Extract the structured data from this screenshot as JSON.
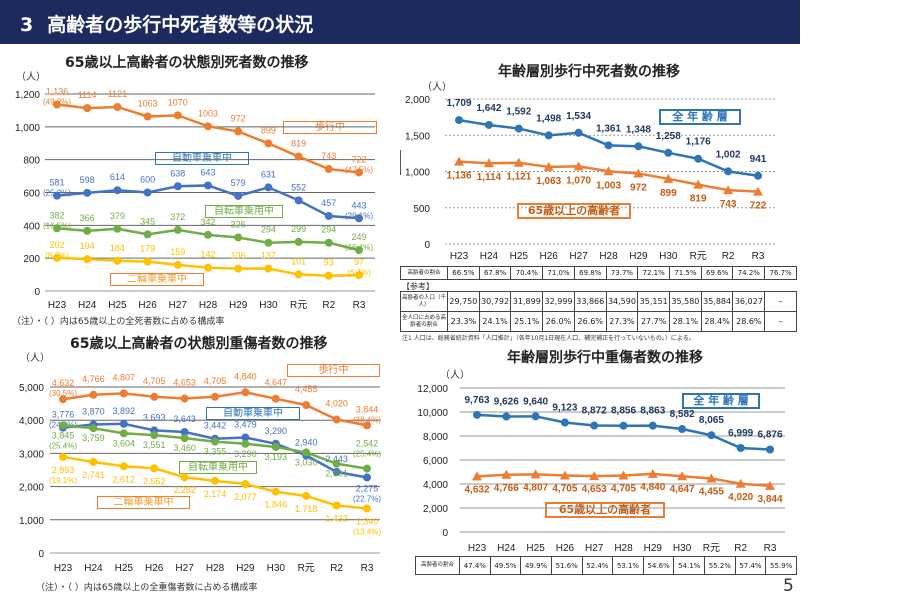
{
  "header": {
    "number": "3",
    "title": "高齢者の歩行中死者数等の状況"
  },
  "page_number": "5",
  "chart_data": [
    {
      "type": "line",
      "title": "65歳以上高齢者の状態別死者数の推移",
      "ylabel": "（人）",
      "ylim": [
        0,
        1200
      ],
      "ytick_step": 200,
      "grid": true,
      "categories": [
        "H23",
        "H24",
        "H25",
        "H26",
        "H27",
        "H28",
        "H29",
        "H30",
        "R元",
        "R2",
        "R3"
      ],
      "note": "（注）・（ ）内は65歳以上の全死者数に占める構成率",
      "series": [
        {
          "name": "歩行中",
          "color": "#ED7D31",
          "values": [
            1136,
            1114,
            1121,
            1063,
            1070,
            1003,
            972,
            899,
            819,
            743,
            722
          ],
          "labels": [
            "1,136",
            "1114",
            "1121",
            "1063",
            "1070",
            "1003",
            "972",
            "899",
            "819",
            "743",
            "722"
          ],
          "notes": [
            "(49.2%)",
            "",
            "",
            "",
            "",
            "",
            "",
            "",
            "",
            "",
            "(47.5%)"
          ]
        },
        {
          "name": "自動車乗車中",
          "color": "#4472C4",
          "values": [
            581,
            598,
            614,
            600,
            638,
            643,
            579,
            631,
            552,
            457,
            443
          ],
          "labels": [
            "581",
            "598",
            "614",
            "600",
            "638",
            "643",
            "579",
            "631",
            "552",
            "457",
            "443"
          ],
          "notes": [
            "(25.2%)",
            "",
            "",
            "",
            "",
            "",
            "",
            "",
            "",
            "",
            "(29.1%)"
          ]
        },
        {
          "name": "自転車乗用中",
          "color": "#70AD47",
          "values": [
            382,
            366,
            379,
            345,
            372,
            342,
            326,
            294,
            299,
            294,
            249
          ],
          "labels": [
            "382",
            "366",
            "379",
            "345",
            "372",
            "342",
            "326",
            "294",
            "299",
            "294",
            "249"
          ],
          "notes": [
            "(16.5%)",
            "",
            "",
            "",
            "",
            "",
            "",
            "",
            "",
            "",
            "(16.4%)"
          ]
        },
        {
          "name": "二輪車乗車中",
          "color": "#FFC000",
          "values": [
            202,
            194,
            184,
            179,
            159,
            142,
            136,
            137,
            101,
            93,
            97
          ],
          "labels": [
            "202",
            "194",
            "184",
            "179",
            "159",
            "142",
            "136",
            "137",
            "101",
            "93",
            "97"
          ],
          "notes": [
            "(8.7%)",
            "",
            "",
            "",
            "",
            "",
            "",
            "",
            "",
            "",
            "(6.4%)"
          ]
        }
      ]
    },
    {
      "type": "line",
      "title": "65歳以上高齢者の状態別重傷者数の推移",
      "ylabel": "（人）",
      "ylim": [
        0,
        5000
      ],
      "ytick_step": 1000,
      "grid": true,
      "categories": [
        "H23",
        "H24",
        "H25",
        "H26",
        "H27",
        "H28",
        "H29",
        "H30",
        "R元",
        "R2",
        "R3"
      ],
      "note": "（注）・（ ）内は65歳以上の全重傷者数に占める構成率",
      "series": [
        {
          "name": "歩行中",
          "color": "#ED7D31",
          "values": [
            4632,
            4766,
            4807,
            4705,
            4653,
            4705,
            4840,
            4647,
            4455,
            4020,
            3844
          ],
          "labels": [
            "4,632",
            "4,766",
            "4,807",
            "4,705",
            "4,653",
            "4,705",
            "4,840",
            "4,647",
            "4,455",
            "4,020",
            "3,844"
          ],
          "notes": [
            "(30.5%)",
            "",
            "",
            "",
            "",
            "",
            "",
            "",
            "",
            "",
            "(38.4%)"
          ]
        },
        {
          "name": "自動車乗車中",
          "color": "#4472C4",
          "values": [
            3776,
            3870,
            3892,
            3693,
            3643,
            3442,
            3479,
            3290,
            2940,
            2443,
            2275
          ],
          "labels": [
            "3,776",
            "3,870",
            "3,892",
            "3,693",
            "3,643",
            "3,442",
            "3,479",
            "3,290",
            "2,940",
            "2,443",
            "2,275"
          ],
          "notes": [
            "(24.9%)",
            "",
            "",
            "",
            "",
            "",
            "",
            "",
            "",
            "",
            "(22.7%)"
          ]
        },
        {
          "name": "自転車乗用中",
          "color": "#70AD47",
          "values": [
            3845,
            3759,
            3604,
            3551,
            3460,
            3355,
            3290,
            3193,
            3030,
            2691,
            2542
          ],
          "labels": [
            "3,845",
            "3,759",
            "3,604",
            "3,551",
            "3,460",
            "3,355",
            "3,290",
            "3,193",
            "3,030",
            "2,691",
            "2,542"
          ],
          "notes": [
            "(25.4%)",
            "",
            "",
            "",
            "",
            "",
            "",
            "",
            "",
            "",
            "(25.4%)"
          ]
        },
        {
          "name": "二輪車乗車中",
          "color": "#FFC000",
          "values": [
            2893,
            2741,
            2612,
            2552,
            2282,
            2174,
            2077,
            1846,
            1718,
            1432,
            1340
          ],
          "labels": [
            "2,893",
            "2,741",
            "2,612",
            "2,552",
            "2,282",
            "2,174",
            "2,077",
            "1,846",
            "1,718",
            "1,432",
            "1,340"
          ],
          "notes": [
            "(19.1%)",
            "",
            "",
            "",
            "",
            "",
            "",
            "",
            "",
            "",
            "(13.4%)"
          ]
        }
      ]
    },
    {
      "type": "line",
      "title": "年齢層別歩行中死者数の推移",
      "ylabel": "（人）",
      "ylim": [
        0,
        2000
      ],
      "ytick_step": 500,
      "grid": true,
      "categories": [
        "H23",
        "H24",
        "H25",
        "H26",
        "H27",
        "H28",
        "H29",
        "H30",
        "R元",
        "R2",
        "R3"
      ],
      "series": [
        {
          "name": "全 年 齢 層",
          "color": "#2E75B6",
          "label_color": "#1F3864",
          "marker": "circle",
          "values": [
            1709,
            1642,
            1592,
            1498,
            1534,
            1361,
            1348,
            1258,
            1176,
            1002,
            941
          ],
          "labels": [
            "1,709",
            "1,642",
            "1,592",
            "1,498",
            "1,534",
            "1,361",
            "1,348",
            "1,258",
            "1,176",
            "1,002",
            "941"
          ]
        },
        {
          "name": "65歳以上の高齢者",
          "color": "#ED7D31",
          "label_color": "#C55A11",
          "marker": "triangle",
          "values": [
            1136,
            1114,
            1121,
            1063,
            1070,
            1003,
            972,
            899,
            819,
            743,
            722
          ],
          "labels": [
            "1,136",
            "1,114",
            "1,121",
            "1,063",
            "1,070",
            "1,003",
            "972",
            "899",
            "819",
            "743",
            "722"
          ]
        }
      ],
      "table": {
        "row_label": "高齢者の割合",
        "values": [
          "66.5%",
          "67.8%",
          "70.4%",
          "71.0%",
          "69.8%",
          "73.7%",
          "72.1%",
          "71.5%",
          "69.6%",
          "74.2%",
          "76.7%"
        ]
      },
      "reference": {
        "heading": "【参考】",
        "rows": [
          {
            "label": "高齢者の人口（千人）",
            "values": [
              "29,750",
              "30,792",
              "31,899",
              "32,999",
              "33,866",
              "34,590",
              "35,151",
              "35,580",
              "35,884",
              "36,027",
              "–"
            ]
          },
          {
            "label": "全人口に占める高齢者の割合",
            "values": [
              "23.3%",
              "24.1%",
              "25.1%",
              "26.0%",
              "26.6%",
              "27.3%",
              "27.7%",
              "28.1%",
              "28.4%",
              "28.6%",
              "–"
            ]
          }
        ],
        "note": "注1 人口は、総務省統計資料「人口推計」（各年10月1日現在人口、補完補正を行っていないもの。）による。"
      }
    },
    {
      "type": "line",
      "title": "年齢層別歩行中重傷者数の推移",
      "ylabel": "（人）",
      "ylim": [
        0,
        12000
      ],
      "ytick_step": 2000,
      "grid": true,
      "categories": [
        "H23",
        "H24",
        "H25",
        "H26",
        "H27",
        "H28",
        "H29",
        "H30",
        "R元",
        "R2",
        "R3"
      ],
      "series": [
        {
          "name": "全 年 齢 層",
          "color": "#2E75B6",
          "label_color": "#1F3864",
          "marker": "circle",
          "values": [
            9763,
            9626,
            9640,
            9123,
            8872,
            8856,
            8863,
            8582,
            8065,
            6999,
            6876
          ],
          "labels": [
            "9,763",
            "9,626",
            "9,640",
            "9,123",
            "8,872",
            "8,856",
            "8,863",
            "8,582",
            "8,065",
            "6,999",
            "6,876"
          ]
        },
        {
          "name": "65歳以上の高齢者",
          "color": "#ED7D31",
          "label_color": "#C55A11",
          "marker": "triangle",
          "values": [
            4632,
            4766,
            4807,
            4705,
            4653,
            4705,
            4840,
            4647,
            4455,
            4020,
            3844
          ],
          "labels": [
            "4,632",
            "4,766",
            "4,807",
            "4,705",
            "4,653",
            "4,705",
            "4,840",
            "4,647",
            "4,455",
            "4,020",
            "3,844"
          ]
        }
      ],
      "table": {
        "row_label": "高齢者の割合",
        "values": [
          "47.4%",
          "49.5%",
          "49.9%",
          "51.6%",
          "52.4%",
          "53.1%",
          "54.6%",
          "54.1%",
          "55.2%",
          "57.4%",
          "55.9%"
        ]
      }
    }
  ]
}
